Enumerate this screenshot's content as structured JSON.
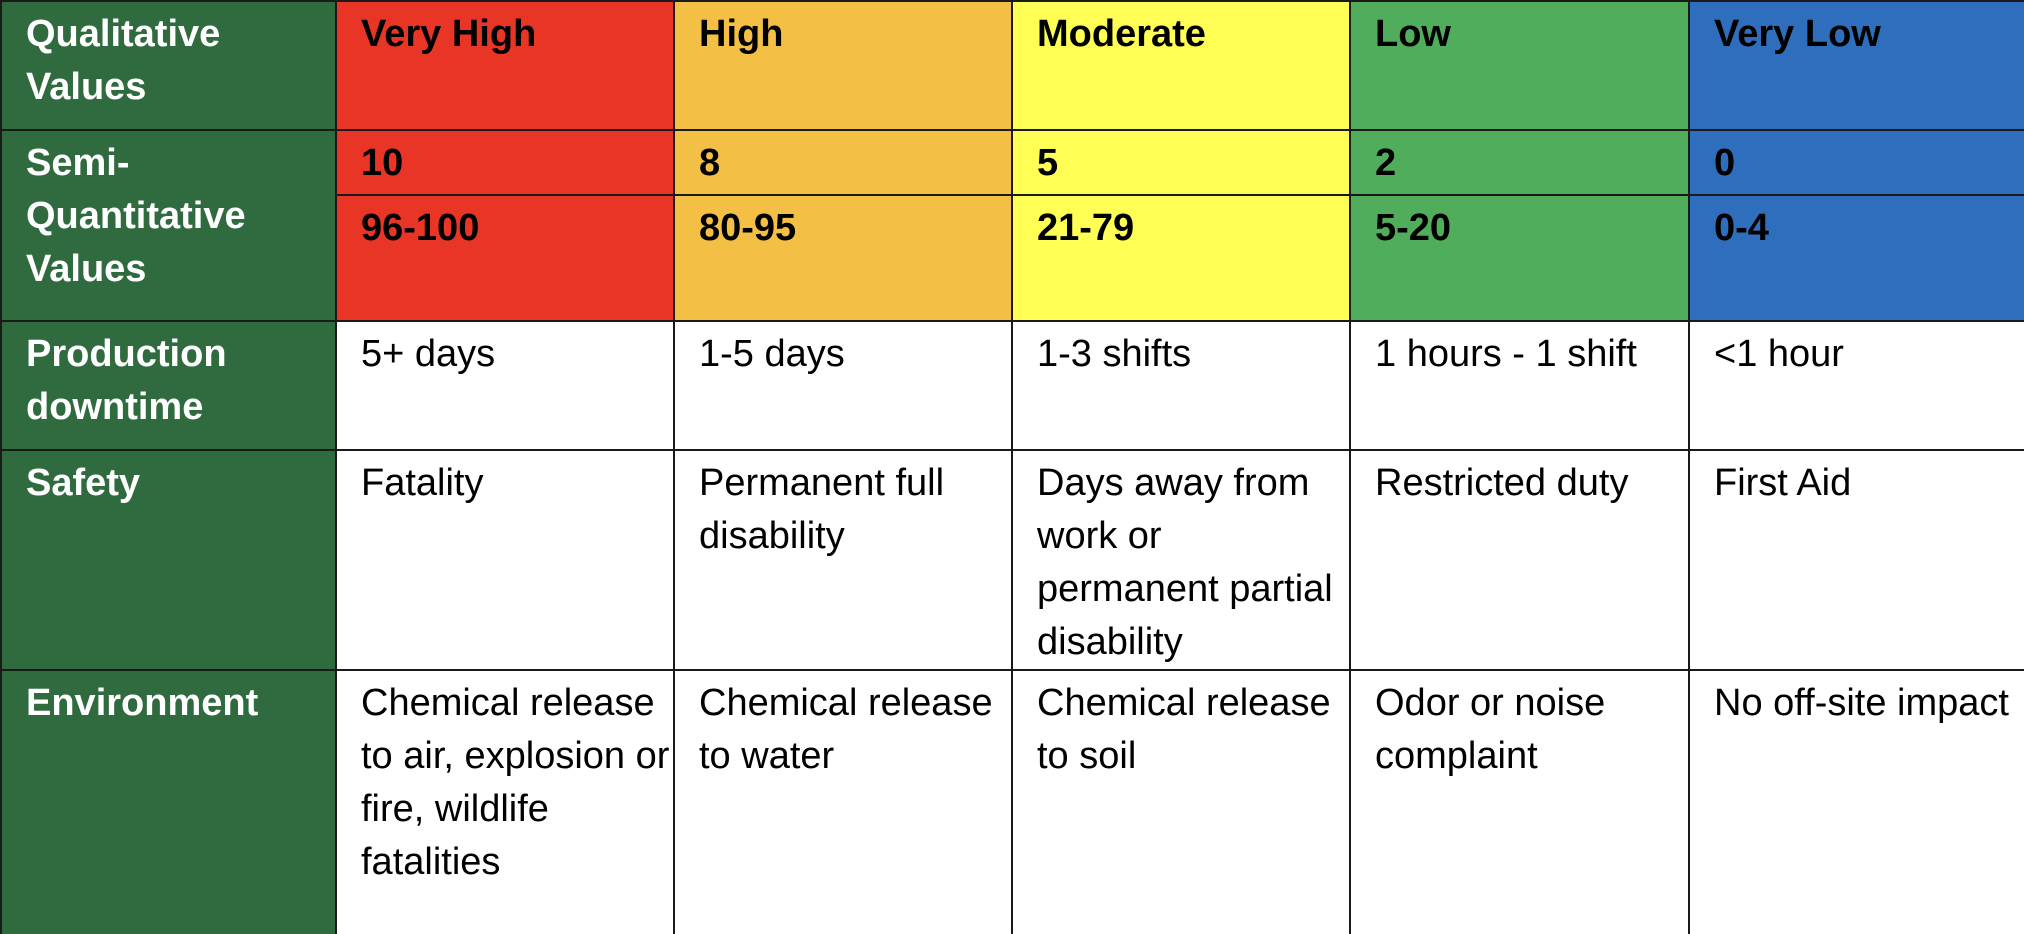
{
  "colors": {
    "row_header_bg": "#2f6b3f",
    "very_high": "#e93525",
    "high": "#f4bf45",
    "moderate": "#fefe54",
    "low": "#4fad5b",
    "very_low": "#2e6ebd"
  },
  "row_headers": {
    "qualitative": "Qualitative Values",
    "semi_quantitative": "Semi-Quantitative Values",
    "production": "Production downtime",
    "safety": "Safety",
    "environment": "Environment"
  },
  "levels": [
    {
      "label": "Very High",
      "score": "10",
      "range": "96-100",
      "production": "5+ days",
      "safety": "Fatality",
      "environment": "Chemical release to air, explosion or fire, wildlife fatalities"
    },
    {
      "label": "High",
      "score": "8",
      "range": "80-95",
      "production": "1-5 days",
      "safety": "Permanent full disability",
      "environment": "Chemical release to water"
    },
    {
      "label": "Moderate",
      "score": "5",
      "range": "21-79",
      "production": "1-3 shifts",
      "safety": "Days away from work or permanent partial disability",
      "environment": "Chemical release to soil"
    },
    {
      "label": "Low",
      "score": "2",
      "range": "5-20",
      "production": "1 hours - 1 shift",
      "safety": "Restricted duty",
      "environment": "Odor or noise complaint"
    },
    {
      "label": "Very Low",
      "score": "0",
      "range": "0-4",
      "production": "<1 hour",
      "safety": "First Aid",
      "environment": "No off-site impact"
    }
  ]
}
